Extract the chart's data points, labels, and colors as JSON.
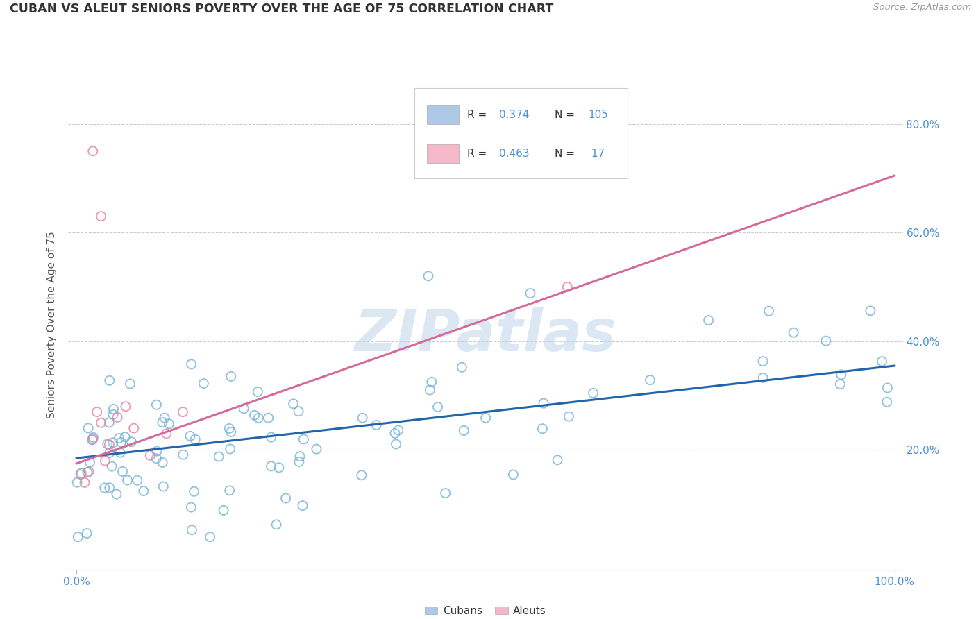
{
  "title": "CUBAN VS ALEUT SENIORS POVERTY OVER THE AGE OF 75 CORRELATION CHART",
  "source_text": "Source: ZipAtlas.com",
  "ylabel": "Seniors Poverty Over the Age of 75",
  "watermark": "ZIPatlas",
  "cubans_R": 0.374,
  "cubans_N": 105,
  "aleuts_R": 0.463,
  "aleuts_N": 17,
  "xlim": [
    -0.01,
    1.01
  ],
  "ylim": [
    -0.02,
    0.88
  ],
  "ytick_positions": [
    0.2,
    0.4,
    0.6,
    0.8
  ],
  "ytick_labels": [
    "20.0%",
    "40.0%",
    "60.0%",
    "80.0%"
  ],
  "xtick_positions": [
    0.0,
    1.0
  ],
  "xtick_labels": [
    "0.0%",
    "100.0%"
  ],
  "cubans_color": "#aec8e8",
  "cubans_edge_color": "#6baed6",
  "aleuts_color": "#f4b8c8",
  "aleuts_edge_color": "#e87fa0",
  "cubans_line_color": "#2166ac",
  "aleuts_line_color": "#d4699a",
  "background_color": "#ffffff",
  "grid_color": "#cccccc",
  "title_color": "#333333",
  "legend_text_color": "#4a90d9",
  "right_axis_color": "#4a90d9",
  "watermark_color": "#c5d8ee",
  "cubans_line_start_y": 0.185,
  "cubans_line_end_y": 0.355,
  "aleuts_line_start_y": 0.175,
  "aleuts_line_end_y": 0.705
}
